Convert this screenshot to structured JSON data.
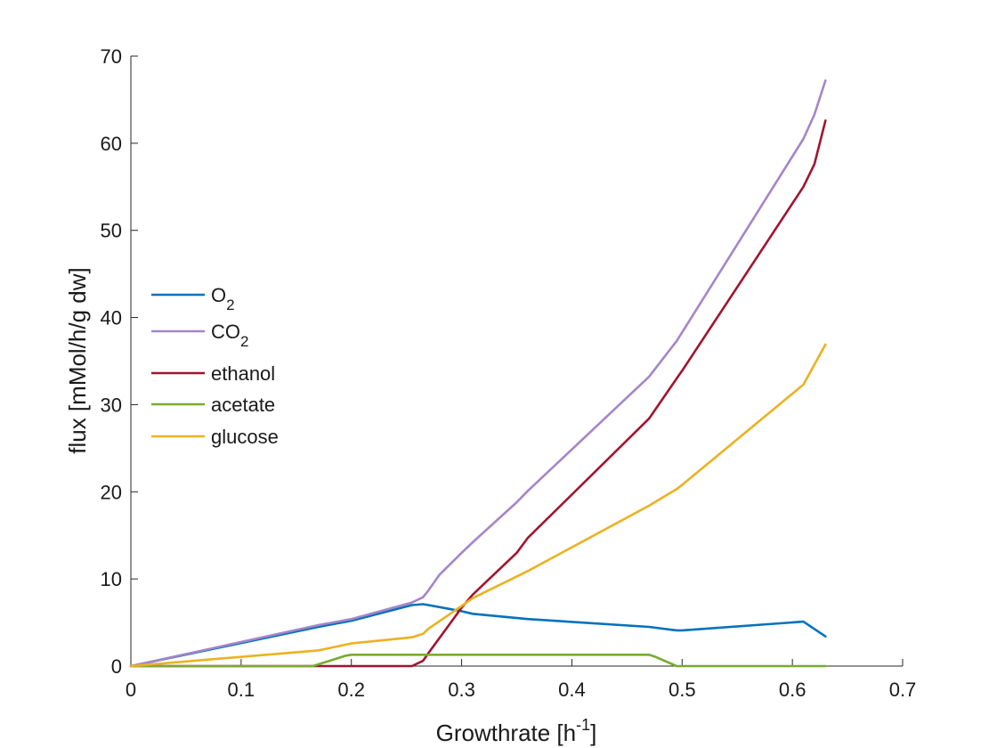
{
  "chart_data": {
    "type": "line",
    "xlabel": "Growthrate [h",
    "xlabel_sup": "-1",
    "xlabel_end": "]",
    "ylabel": "flux [mMol/h/g dw]",
    "xlim": [
      0,
      0.7
    ],
    "ylim": [
      0,
      70
    ],
    "xticks": [
      0,
      0.1,
      0.2,
      0.3,
      0.4,
      0.5,
      0.6,
      0.7
    ],
    "xtick_labels": [
      "0",
      "0.1",
      "0.2",
      "0.3",
      "0.4",
      "0.5",
      "0.6",
      "0.7"
    ],
    "yticks": [
      0,
      10,
      20,
      30,
      40,
      50,
      60,
      70
    ],
    "ytick_labels": [
      "0",
      "10",
      "20",
      "30",
      "40",
      "50",
      "60",
      "70"
    ],
    "grid": false,
    "legend_position": "left",
    "series": [
      {
        "name": "O",
        "name_sub": "2",
        "color": "#0072BD",
        "x": [
          0,
          0.17,
          0.2,
          0.255,
          0.265,
          0.27,
          0.3,
          0.31,
          0.36,
          0.47,
          0.495,
          0.5,
          0.61,
          0.63
        ],
        "y": [
          0,
          4.5,
          5.2,
          7.0,
          7.1,
          7.0,
          6.3,
          6.0,
          5.4,
          4.5,
          4.1,
          4.1,
          5.1,
          3.4
        ]
      },
      {
        "name": "CO",
        "name_sub": "2",
        "color": "#A585C8",
        "x": [
          0,
          0.17,
          0.2,
          0.255,
          0.265,
          0.27,
          0.28,
          0.3,
          0.31,
          0.35,
          0.36,
          0.47,
          0.495,
          0.5,
          0.61,
          0.62,
          0.63
        ],
        "y": [
          0,
          4.7,
          5.4,
          7.3,
          7.9,
          8.7,
          10.5,
          13.0,
          14.2,
          18.8,
          20.1,
          33.2,
          37.3,
          38.3,
          60.5,
          63.3,
          67.2
        ]
      },
      {
        "name": "ethanol",
        "name_sub": "",
        "color": "#A2142F",
        "x": [
          0,
          0.255,
          0.265,
          0.27,
          0.3,
          0.31,
          0.35,
          0.36,
          0.47,
          0.495,
          0.5,
          0.61,
          0.62,
          0.63
        ],
        "y": [
          0,
          0,
          0.6,
          1.5,
          6.7,
          8.2,
          13.0,
          14.7,
          28.4,
          33.0,
          33.9,
          55.0,
          57.6,
          62.6
        ]
      },
      {
        "name": "acetate",
        "name_sub": "",
        "color": "#77AC30",
        "x": [
          0,
          0.165,
          0.195,
          0.2,
          0.47,
          0.475,
          0.495,
          0.63
        ],
        "y": [
          0,
          0,
          1.2,
          1.3,
          1.3,
          1.1,
          0,
          0
        ]
      },
      {
        "name": "glucose",
        "name_sub": "",
        "color": "#EDB120",
        "x": [
          0,
          0.17,
          0.2,
          0.255,
          0.265,
          0.27,
          0.3,
          0.31,
          0.36,
          0.47,
          0.495,
          0.5,
          0.61,
          0.63
        ],
        "y": [
          0,
          1.8,
          2.6,
          3.3,
          3.7,
          4.3,
          6.9,
          7.8,
          10.9,
          18.4,
          20.3,
          20.8,
          32.3,
          36.9
        ]
      }
    ]
  }
}
